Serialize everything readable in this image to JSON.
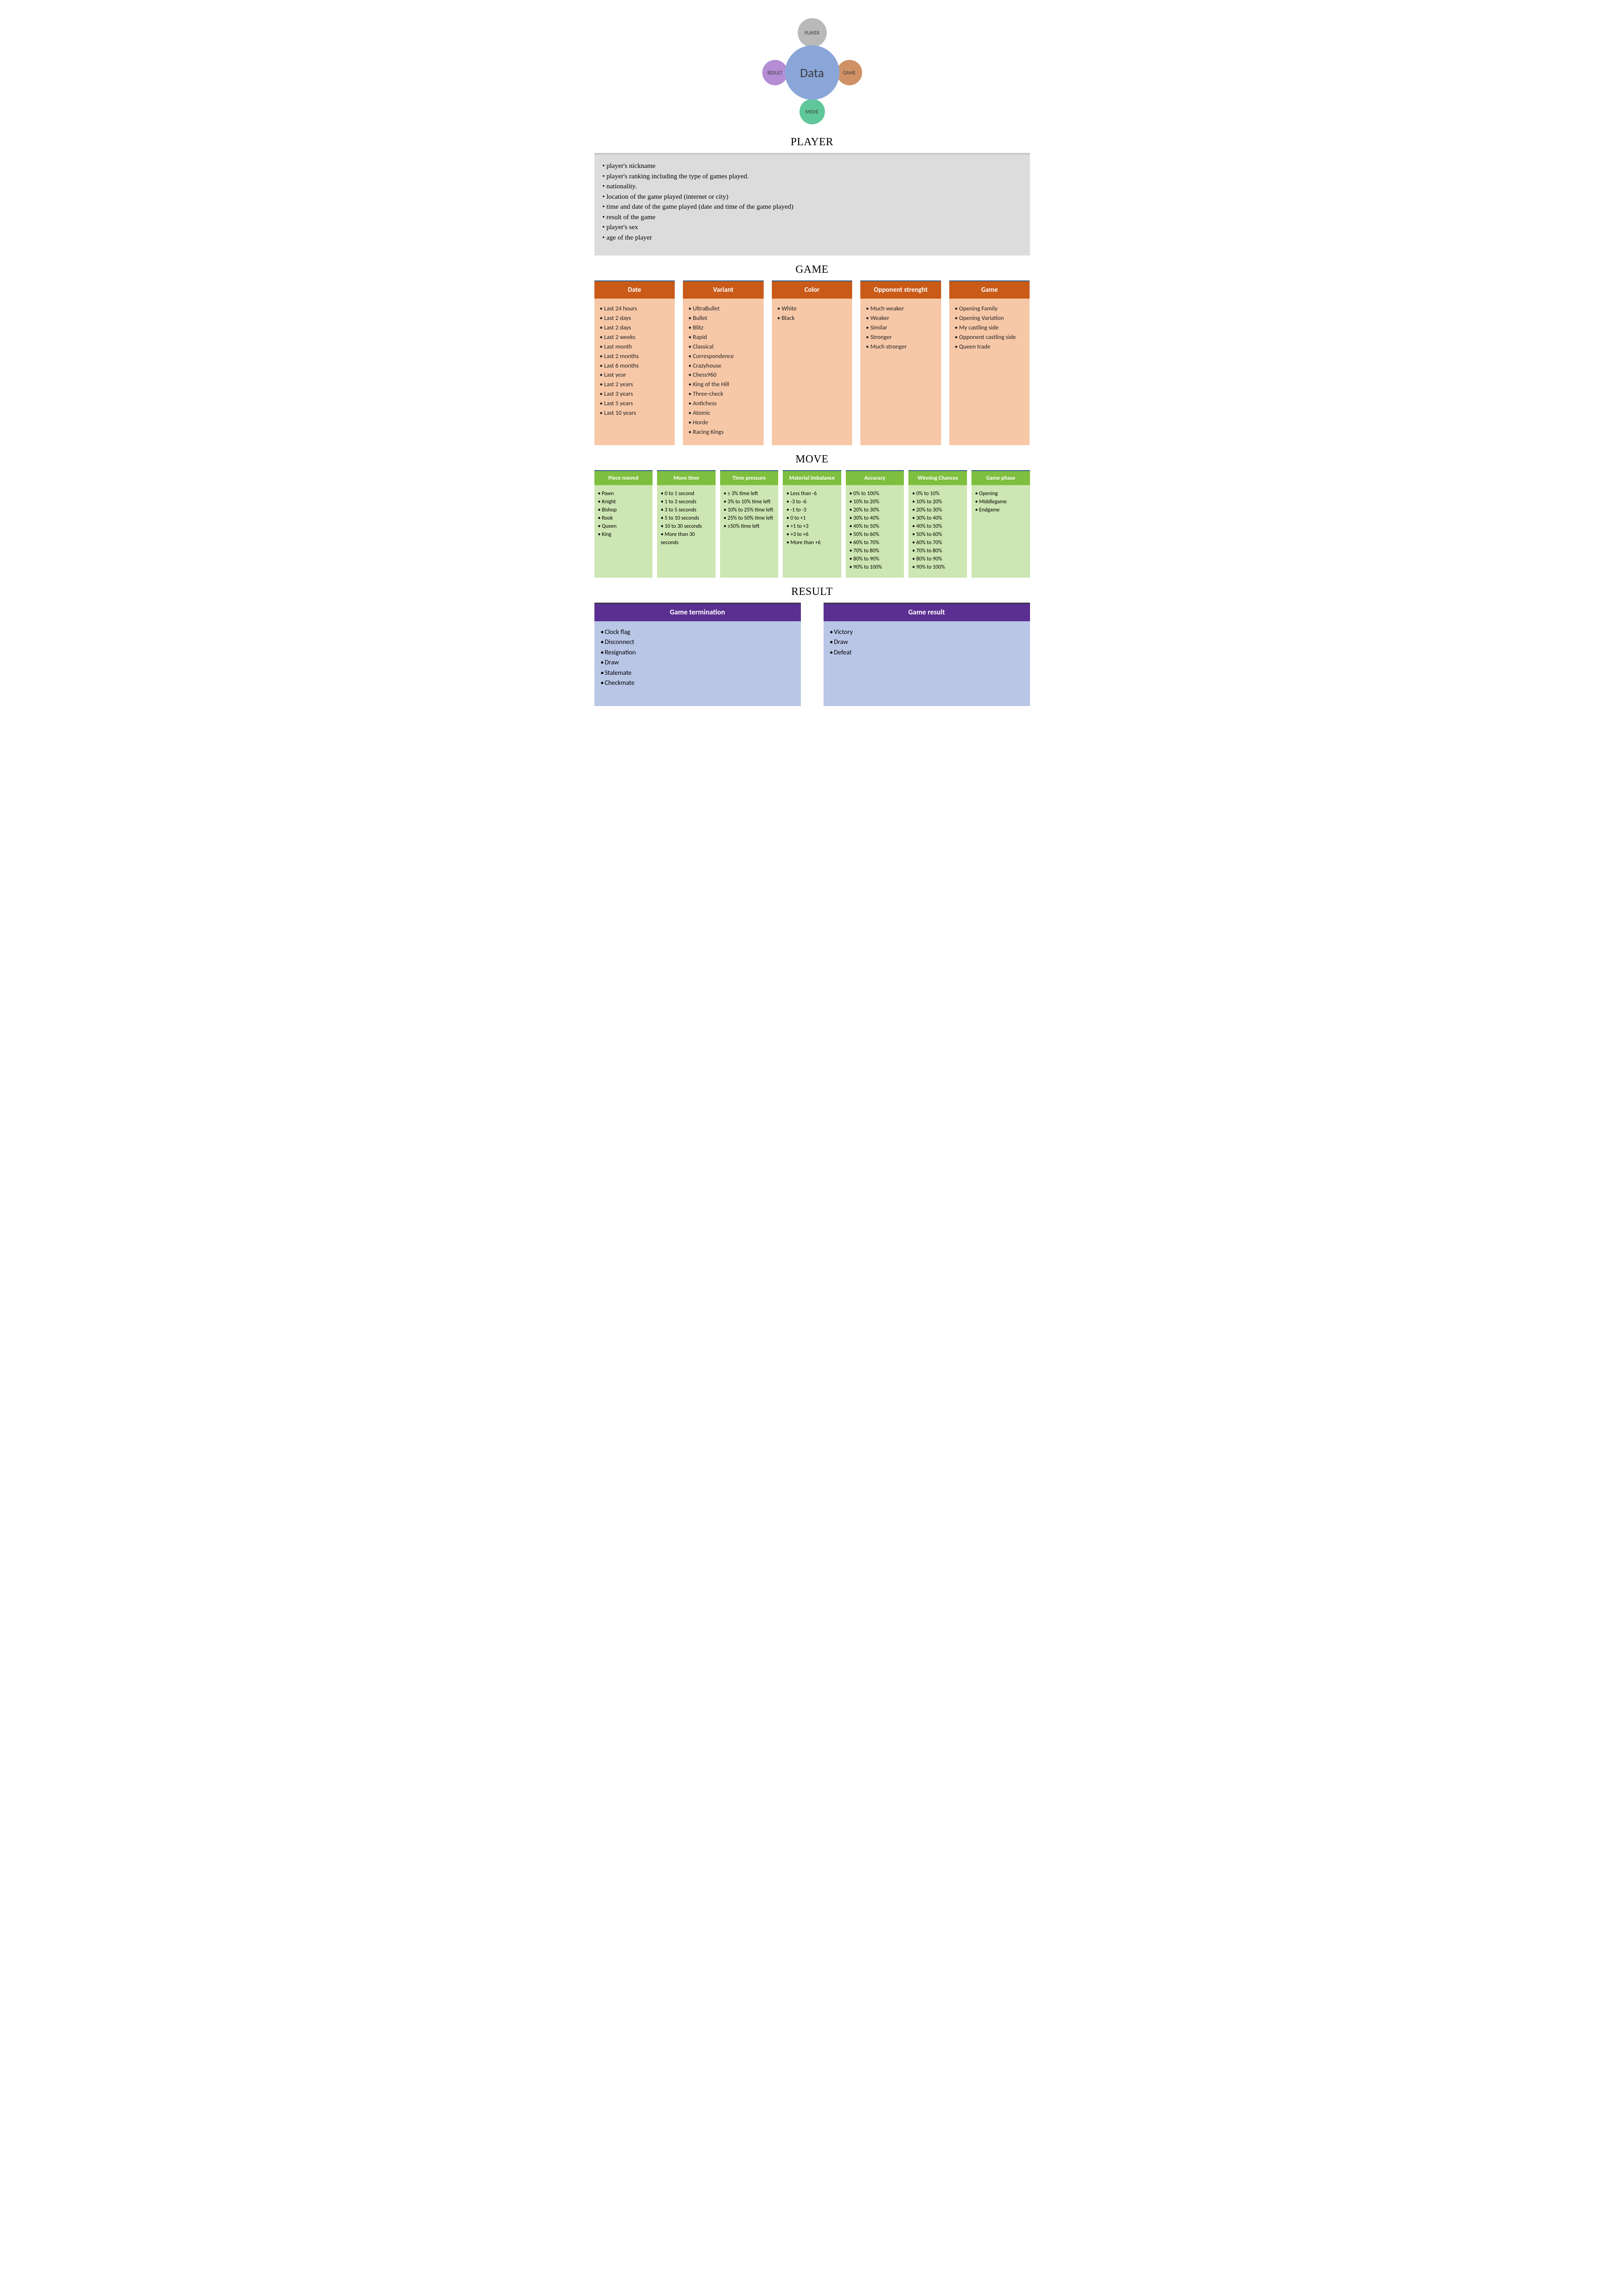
{
  "colors": {
    "bubble_center": "#8aa6d9",
    "bubble_top": "#b9b9b9",
    "bubble_right": "#cf9165",
    "bubble_bottom": "#5fc79a",
    "bubble_left": "#b48dd4",
    "game_header": "#c95a18",
    "game_body": "#f7c8a8",
    "move_header": "#7fbf3f",
    "move_body": "#cde6b3",
    "result_header": "#5b2f91",
    "result_body": "#b9c6e6",
    "player_bg": "#dcdcdc",
    "player_topbar": "#c8c8c8"
  },
  "bubbles": {
    "center": "Data",
    "top": "PLAYER",
    "right": "GAME",
    "bottom": "MOVE",
    "left": "RESULT"
  },
  "sections": {
    "player": "PLAYER",
    "game": "GAME",
    "move": "MOVE",
    "result": "RESULT"
  },
  "player_items": [
    "player's nickname",
    "player's ranking including the type of games played.",
    "nationality.",
    "location of the game played (internet or city)",
    "time and date of the game played (date and time of the game played)",
    "result of the game",
    "player's sex",
    "age of the player"
  ],
  "game_cards": [
    {
      "title": "Date",
      "items": [
        "Last 24 hours",
        "Last 2 days",
        "Last 2 days",
        "Last 2 weeks",
        "Last month",
        "Last 2 months",
        "Last 6 months",
        "Last year",
        "Last 2 years",
        "Last 3 years",
        "Last 5 years",
        "Last 10 years"
      ]
    },
    {
      "title": "Variant",
      "items": [
        "UltraBullet",
        "Bullet",
        "Blitz",
        "Rapid",
        "Classical",
        "Correspondence",
        "Crazyhouse",
        "Chess960",
        "King of the Hill",
        "Three-check",
        "Antichess",
        "Atomic",
        "Horde",
        "Racing Kings"
      ]
    },
    {
      "title": "Color",
      "items": [
        "White",
        "Black"
      ]
    },
    {
      "title": "Opponent strenght",
      "items": [
        "Much weaker",
        "Weaker",
        "Similar",
        "Stronger",
        "Much stronger"
      ]
    },
    {
      "title": "Game",
      "items": [
        "Opening Family",
        "Opening Variation",
        "My castling side",
        "Opponent castling side",
        "Queen trade"
      ]
    }
  ],
  "move_cards": [
    {
      "title": "Piece moved",
      "items": [
        "Pawn",
        "Knight",
        "Bishop",
        "Rook",
        "Queen",
        "King"
      ]
    },
    {
      "title": "Move time",
      "items": [
        "0 to 1 second",
        "1 to 3 seconds",
        "3 to 5 seconds",
        "5 to 10 seconds",
        "10 to 30 seconds",
        "More than 30 seconds"
      ]
    },
    {
      "title": "Time pressure",
      "items": [
        "≤ 3% time left",
        "3% to 10% time left",
        "10% to 25% time left",
        "25% to 50% time left",
        "≥50% time left"
      ]
    },
    {
      "title": "Material imbalance",
      "items": [
        "Less than -6",
        "-3 to -6",
        "-1 to -3",
        "0 to +1",
        "+1 to +3",
        "+3 to +6",
        "More than +6"
      ]
    },
    {
      "title": "Accuracy",
      "items": [
        "0% to 100%",
        "10% to 20%",
        "20% to 30%",
        "30% to 40%",
        "40% to 50%",
        "50% to 60%",
        "60% to 70%",
        "70% to 80%",
        "80% to 90%",
        "90% to 100%"
      ]
    },
    {
      "title": "Winning Chances",
      "items": [
        "0% to 10%",
        "10% to 20%",
        "20% to 30%",
        "30% to 40%",
        "40% to 50%",
        "50% to 60%",
        "60% to 70%",
        "70% to 80%",
        "80% to 90%",
        "90% to 100%"
      ]
    },
    {
      "title": "Game phase",
      "items": [
        "Opening",
        "Middlegame",
        "Endgame"
      ]
    }
  ],
  "result_cards": [
    {
      "title": "Game termination",
      "items": [
        "Clock flag",
        "Disconnect",
        "Resignation",
        "Draw",
        "Stalemate",
        "Checkmate"
      ]
    },
    {
      "title": "Game result",
      "items": [
        "Victory",
        "Draw",
        "Defeat"
      ]
    }
  ]
}
